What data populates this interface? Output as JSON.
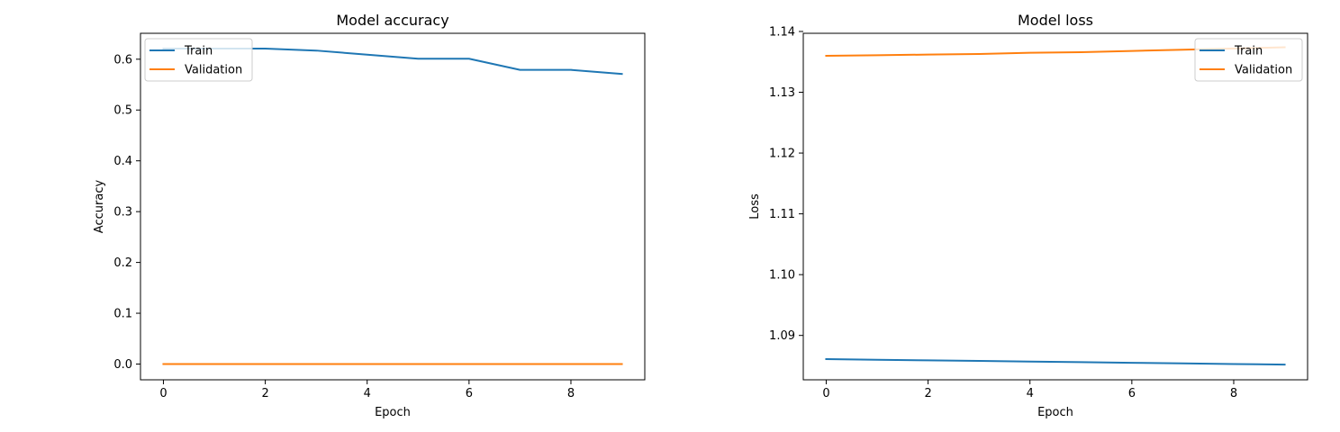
{
  "chart_data": [
    {
      "type": "line",
      "title": "Model accuracy",
      "xlabel": "Epoch",
      "ylabel": "Accuracy",
      "x": [
        0,
        1,
        2,
        3,
        4,
        5,
        6,
        7,
        8,
        9
      ],
      "xlim": [
        -0.45,
        9.45
      ],
      "ylim": [
        -0.031,
        0.651
      ],
      "xticks": [
        0,
        2,
        4,
        6,
        8
      ],
      "xtick_labels": [
        "0",
        "2",
        "4",
        "6",
        "8"
      ],
      "yticks": [
        0.0,
        0.1,
        0.2,
        0.3,
        0.4,
        0.5,
        0.6
      ],
      "ytick_labels": [
        "0.0",
        "0.1",
        "0.2",
        "0.3",
        "0.4",
        "0.5",
        "0.6"
      ],
      "grid": false,
      "legend_position": "upper left",
      "series": [
        {
          "name": "Train",
          "color": "#1f77b4",
          "values": [
            0.621,
            0.621,
            0.621,
            0.617,
            0.609,
            0.601,
            0.601,
            0.579,
            0.579,
            0.571
          ]
        },
        {
          "name": "Validation",
          "color": "#ff7f0e",
          "values": [
            0.0,
            0.0,
            0.0,
            0.0,
            0.0,
            0.0,
            0.0,
            0.0,
            0.0,
            0.0
          ]
        }
      ]
    },
    {
      "type": "line",
      "title": "Model loss",
      "xlabel": "Epoch",
      "ylabel": "Loss",
      "x": [
        0,
        1,
        2,
        3,
        4,
        5,
        6,
        7,
        8,
        9
      ],
      "xlim": [
        -0.45,
        9.45
      ],
      "ylim": [
        1.0827,
        1.1397
      ],
      "xticks": [
        0,
        2,
        4,
        6,
        8
      ],
      "xtick_labels": [
        "0",
        "2",
        "4",
        "6",
        "8"
      ],
      "yticks": [
        1.09,
        1.1,
        1.11,
        1.12,
        1.13,
        1.14
      ],
      "ytick_labels": [
        "1.09",
        "1.10",
        "1.11",
        "1.12",
        "1.13",
        "1.14"
      ],
      "grid": false,
      "legend_position": "upper right",
      "series": [
        {
          "name": "Train",
          "color": "#1f77b4",
          "values": [
            1.0861,
            1.086,
            1.0859,
            1.0858,
            1.0857,
            1.0856,
            1.0855,
            1.0854,
            1.0853,
            1.0852
          ]
        },
        {
          "name": "Validation",
          "color": "#ff7f0e",
          "values": [
            1.136,
            1.1361,
            1.1362,
            1.1363,
            1.1365,
            1.1366,
            1.1368,
            1.137,
            1.1372,
            1.1374
          ]
        }
      ]
    }
  ]
}
